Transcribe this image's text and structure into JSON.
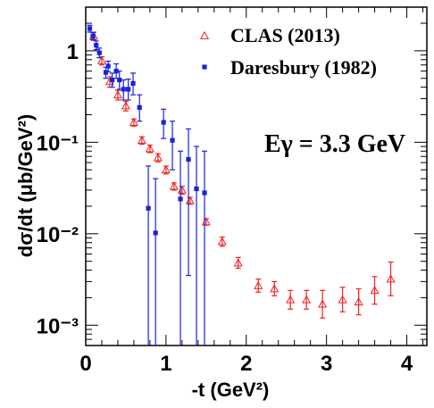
{
  "chart_data": {
    "type": "scatter",
    "xlabel": "-t (GeV²)",
    "ylabel": "dσ/dt (μb/GeV²)",
    "xlim": [
      0,
      4.25
    ],
    "ylim": [
      0.0006,
      3.0
    ],
    "y_scale": "log",
    "x_ticks": [
      "0",
      "1",
      "2",
      "3",
      "4"
    ],
    "y_ticks": [
      "10⁻³",
      "10⁻²",
      "10⁻¹",
      "1"
    ],
    "grid": false,
    "legend_position": "top-right",
    "annotation": "Eγ = 3.3 GeV",
    "series": [
      {
        "name": "CLAS (2013)",
        "marker": "open-triangle",
        "color": "#ee2222",
        "points": [
          {
            "x": 0.1,
            "y": 1.45,
            "lo": 1.3,
            "hi": 1.6
          },
          {
            "x": 0.2,
            "y": 0.78,
            "lo": 0.7,
            "hi": 0.86
          },
          {
            "x": 0.3,
            "y": 0.46,
            "lo": 0.4,
            "hi": 0.52
          },
          {
            "x": 0.4,
            "y": 0.33,
            "lo": 0.29,
            "hi": 0.37
          },
          {
            "x": 0.5,
            "y": 0.25,
            "lo": 0.22,
            "hi": 0.28
          },
          {
            "x": 0.6,
            "y": 0.165,
            "lo": 0.15,
            "hi": 0.18
          },
          {
            "x": 0.7,
            "y": 0.105,
            "lo": 0.095,
            "hi": 0.115
          },
          {
            "x": 0.8,
            "y": 0.085,
            "lo": 0.077,
            "hi": 0.093
          },
          {
            "x": 0.9,
            "y": 0.068,
            "lo": 0.061,
            "hi": 0.075
          },
          {
            "x": 1.0,
            "y": 0.05,
            "lo": 0.045,
            "hi": 0.055
          },
          {
            "x": 1.1,
            "y": 0.033,
            "lo": 0.03,
            "hi": 0.036
          },
          {
            "x": 1.2,
            "y": 0.03,
            "lo": 0.027,
            "hi": 0.033
          },
          {
            "x": 1.3,
            "y": 0.023,
            "lo": 0.021,
            "hi": 0.025
          },
          {
            "x": 1.5,
            "y": 0.0135,
            "lo": 0.0124,
            "hi": 0.0146
          },
          {
            "x": 1.7,
            "y": 0.0082,
            "lo": 0.0073,
            "hi": 0.0092
          },
          {
            "x": 1.9,
            "y": 0.0048,
            "lo": 0.0042,
            "hi": 0.0055
          },
          {
            "x": 2.15,
            "y": 0.0027,
            "lo": 0.0023,
            "hi": 0.0032
          },
          {
            "x": 2.35,
            "y": 0.0025,
            "lo": 0.0021,
            "hi": 0.003
          },
          {
            "x": 2.55,
            "y": 0.0019,
            "lo": 0.0015,
            "hi": 0.0024
          },
          {
            "x": 2.75,
            "y": 0.0019,
            "lo": 0.0015,
            "hi": 0.0024
          },
          {
            "x": 2.95,
            "y": 0.0017,
            "lo": 0.0012,
            "hi": 0.0024
          },
          {
            "x": 3.2,
            "y": 0.0019,
            "lo": 0.0014,
            "hi": 0.0026
          },
          {
            "x": 3.4,
            "y": 0.0018,
            "lo": 0.0013,
            "hi": 0.0025
          },
          {
            "x": 3.6,
            "y": 0.0024,
            "lo": 0.0017,
            "hi": 0.0034
          },
          {
            "x": 3.8,
            "y": 0.0032,
            "lo": 0.0021,
            "hi": 0.0049
          }
        ]
      },
      {
        "name": "Daresbury (1982)",
        "marker": "filled-square",
        "color": "#1a22dd",
        "points": [
          {
            "x": 0.05,
            "y": 1.75,
            "lo": 1.6,
            "hi": 1.9
          },
          {
            "x": 0.09,
            "y": 1.45,
            "lo": 1.32,
            "hi": 1.58
          },
          {
            "x": 0.13,
            "y": 1.15,
            "lo": 1.03,
            "hi": 1.28
          },
          {
            "x": 0.17,
            "y": 0.95,
            "lo": 0.84,
            "hi": 1.07
          },
          {
            "x": 0.25,
            "y": 0.58,
            "lo": 0.5,
            "hi": 0.66
          },
          {
            "x": 0.28,
            "y": 0.68,
            "lo": 0.59,
            "hi": 0.77
          },
          {
            "x": 0.33,
            "y": 0.48,
            "lo": 0.4,
            "hi": 0.57
          },
          {
            "x": 0.38,
            "y": 0.6,
            "lo": 0.5,
            "hi": 0.72
          },
          {
            "x": 0.42,
            "y": 0.48,
            "lo": 0.38,
            "hi": 0.6
          },
          {
            "x": 0.47,
            "y": 0.38,
            "lo": 0.29,
            "hi": 0.48
          },
          {
            "x": 0.53,
            "y": 0.38,
            "lo": 0.29,
            "hi": 0.49
          },
          {
            "x": 0.59,
            "y": 0.44,
            "lo": 0.33,
            "hi": 0.57
          },
          {
            "x": 0.67,
            "y": 0.24,
            "lo": 0.17,
            "hi": 0.33
          },
          {
            "x": 0.78,
            "y": 0.019,
            "lo": 0.00055,
            "hi": 0.055
          },
          {
            "x": 0.87,
            "y": 0.0102,
            "lo": 0.00055,
            "hi": 0.04
          },
          {
            "x": 0.97,
            "y": 0.165,
            "lo": 0.11,
            "hi": 0.23
          },
          {
            "x": 1.08,
            "y": 0.105,
            "lo": 0.05,
            "hi": 0.17
          },
          {
            "x": 1.18,
            "y": 0.024,
            "lo": 0.00055,
            "hi": 0.08
          },
          {
            "x": 1.28,
            "y": 0.065,
            "lo": 0.0035,
            "hi": 0.14
          },
          {
            "x": 1.38,
            "y": 0.031,
            "lo": 0.00055,
            "hi": 0.09
          },
          {
            "x": 1.48,
            "y": 0.028,
            "lo": 0.00055,
            "hi": 0.08
          }
        ]
      }
    ]
  }
}
